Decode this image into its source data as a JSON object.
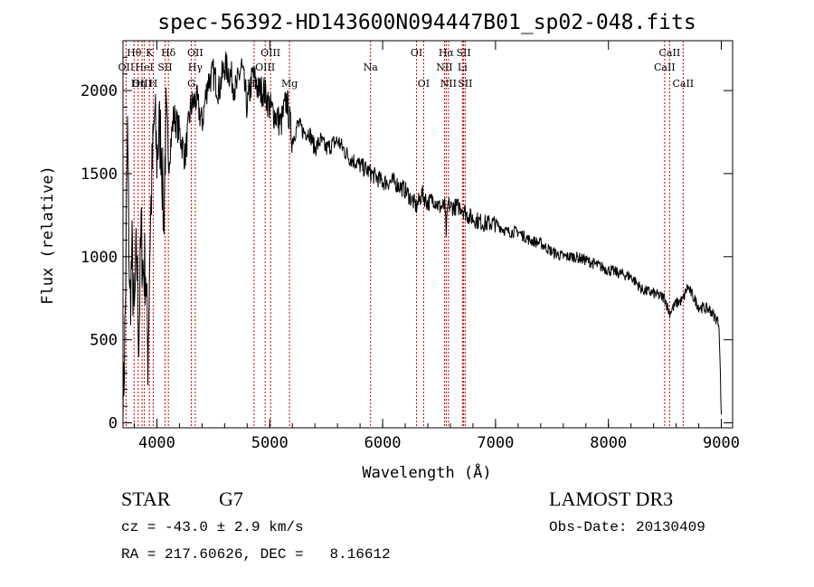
{
  "chart_data": {
    "type": "line",
    "title": "spec-56392-HD143600N094447B01_sp02-048.fits",
    "xlabel": "Wavelength (Å)",
    "ylabel": "Flux (relative)",
    "xlim": [
      3700,
      9100
    ],
    "ylim": [
      -30,
      2300
    ],
    "xticks": [
      4000,
      5000,
      6000,
      7000,
      8000,
      9000
    ],
    "yticks": [
      0,
      500,
      1000,
      1500,
      2000
    ],
    "series": [
      {
        "name": "spectrum",
        "x": [
          3700,
          3720,
          3740,
          3760,
          3780,
          3800,
          3820,
          3840,
          3860,
          3880,
          3900,
          3920,
          3940,
          3960,
          3980,
          4000,
          4020,
          4040,
          4060,
          4080,
          4100,
          4150,
          4200,
          4250,
          4300,
          4350,
          4400,
          4450,
          4500,
          4550,
          4600,
          4650,
          4700,
          4750,
          4800,
          4850,
          4900,
          4950,
          5000,
          5050,
          5100,
          5150,
          5200,
          5250,
          5300,
          5350,
          5400,
          5450,
          5500,
          5600,
          5700,
          5800,
          5900,
          6000,
          6100,
          6200,
          6300,
          6350,
          6400,
          6450,
          6500,
          6550,
          6563,
          6580,
          6600,
          6650,
          6700,
          6750,
          6800,
          6900,
          7000,
          7100,
          7200,
          7300,
          7400,
          7500,
          7600,
          7700,
          7800,
          7900,
          8000,
          8100,
          8200,
          8300,
          8400,
          8500,
          8540,
          8600,
          8660,
          8700,
          8800,
          8900,
          8980,
          9000
        ],
        "values": [
          20,
          650,
          1750,
          700,
          1000,
          600,
          1050,
          500,
          1150,
          900,
          950,
          400,
          1150,
          1550,
          1850,
          1600,
          1750,
          1700,
          1200,
          1800,
          1550,
          1850,
          1750,
          1600,
          1900,
          1950,
          1800,
          2050,
          2100,
          2000,
          2150,
          2100,
          2000,
          2150,
          1900,
          2100,
          2000,
          2000,
          1900,
          1850,
          1800,
          1950,
          1700,
          1800,
          1750,
          1750,
          1650,
          1700,
          1650,
          1700,
          1600,
          1550,
          1500,
          1450,
          1450,
          1400,
          1300,
          1380,
          1320,
          1350,
          1300,
          1300,
          1150,
          1320,
          1300,
          1300,
          1300,
          1250,
          1230,
          1200,
          1200,
          1150,
          1150,
          1100,
          1080,
          1030,
          1000,
          1000,
          980,
          950,
          920,
          900,
          880,
          800,
          780,
          750,
          660,
          720,
          740,
          820,
          700,
          680,
          600,
          50
        ]
      }
    ],
    "spectral_lines": [
      {
        "label": "Hθ",
        "wavelength": 3798,
        "row": 1
      },
      {
        "label": "K",
        "wavelength": 3934,
        "row": 1
      },
      {
        "label": "Hδ",
        "wavelength": 4102,
        "row": 1
      },
      {
        "label": "OII",
        "wavelength": 4340,
        "row": 1
      },
      {
        "label": "OIII",
        "wavelength": 5007,
        "row": 1
      },
      {
        "label": "Na",
        "wavelength": 5893,
        "row": 2
      },
      {
        "label": "OI",
        "wavelength": 6300,
        "row": 1
      },
      {
        "label": "Hα",
        "wavelength": 6563,
        "row": 1
      },
      {
        "label": "SII",
        "wavelength": 6717,
        "row": 1
      },
      {
        "label": "CaII",
        "wavelength": 8542,
        "row": 1
      },
      {
        "label": "OII",
        "wavelength": 3727,
        "row": 2
      },
      {
        "label": "HeI",
        "wavelength": 3889,
        "row": 2
      },
      {
        "label": "SII",
        "wavelength": 4072,
        "row": 2
      },
      {
        "label": "Hγ",
        "wavelength": 4340,
        "row": 2
      },
      {
        "label": "OIII",
        "wavelength": 4959,
        "row": 2
      },
      {
        "label": "NII",
        "wavelength": 6548,
        "row": 2
      },
      {
        "label": "Li",
        "wavelength": 6707,
        "row": 2
      },
      {
        "label": "CaII",
        "wavelength": 8498,
        "row": 2
      },
      {
        "label": "OIII",
        "wavelength": 3869,
        "row": 3
      },
      {
        "label": "Hη",
        "wavelength": 3835,
        "row": 3
      },
      {
        "label": "H",
        "wavelength": 3968,
        "row": 3
      },
      {
        "label": "G",
        "wavelength": 4305,
        "row": 3
      },
      {
        "label": "Hβ",
        "wavelength": 4861,
        "row": 3
      },
      {
        "label": "Mg",
        "wavelength": 5175,
        "row": 3
      },
      {
        "label": "OI",
        "wavelength": 6363,
        "row": 3
      },
      {
        "label": "NII",
        "wavelength": 6583,
        "row": 3
      },
      {
        "label": "SII",
        "wavelength": 6731,
        "row": 3
      },
      {
        "label": "CaII",
        "wavelength": 8662,
        "row": 3
      }
    ]
  },
  "info": {
    "class": "STAR",
    "subclass": "G7",
    "survey": "LAMOST DR3",
    "cz": "cz = -43.0 ± 2.9 km/s",
    "obs_date": "Obs-Date: 20130409",
    "radec": "RA = 217.60626, DEC =   8.16612"
  },
  "colors": {
    "axis": "#000000",
    "line_marker": "#cc0000",
    "spectrum": "#000000"
  }
}
